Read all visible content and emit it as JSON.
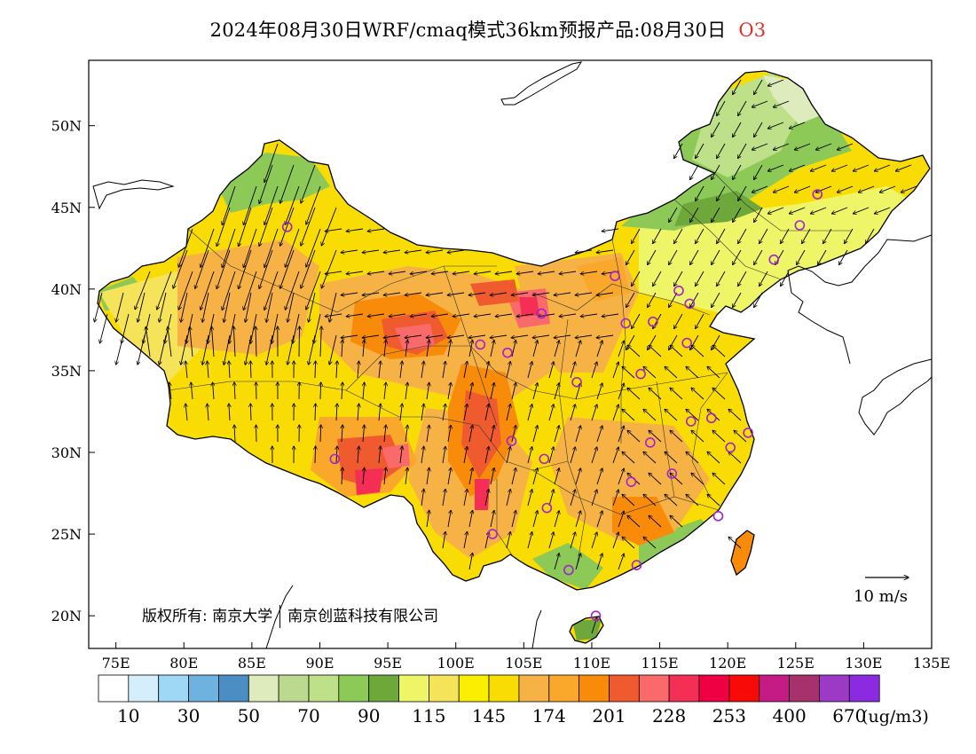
{
  "title": {
    "text": "2024年08月30日WRF/cmaq模式36km预报产品:08月30日",
    "species": "O3"
  },
  "copyright": {
    "prefix": "版权所有:",
    "org1": "南京大学",
    "org2": "南京创蓝科技有限公司"
  },
  "wind_scale": {
    "label": "10  m/s"
  },
  "axes": {
    "lat_ticks": [
      "50N",
      "45N",
      "40N",
      "35N",
      "30N",
      "25N",
      "20N"
    ],
    "lat_values": [
      50,
      45,
      40,
      35,
      30,
      25,
      20
    ],
    "lon_ticks": [
      "75E",
      "80E",
      "85E",
      "90E",
      "95E",
      "100E",
      "105E",
      "110E",
      "115E",
      "120E",
      "125E",
      "130E",
      "135E"
    ],
    "lon_values": [
      75,
      80,
      85,
      90,
      95,
      100,
      105,
      110,
      115,
      120,
      125,
      130,
      135
    ],
    "lon_range": [
      73,
      135
    ],
    "lat_range": [
      18,
      54
    ]
  },
  "colorbar": {
    "unit": "(ug/m3)",
    "colors": [
      "#ffffff",
      "#d4effb",
      "#9fd8f5",
      "#6eb2e0",
      "#4a8ec4",
      "#ddebbd",
      "#bbd98f",
      "#bde088",
      "#8dc956",
      "#6ea83a",
      "#eef566",
      "#f5e35a",
      "#fbef00",
      "#f8dc04",
      "#f7b246",
      "#f9a82b",
      "#f98b0a",
      "#ef5b2e",
      "#fb6a6a",
      "#f42e55",
      "#ef0042",
      "#f70a08",
      "#c41b84",
      "#a6316d",
      "#9c3ac6",
      "#8b2ae0"
    ],
    "labels": [
      {
        "text": "10",
        "boundary": 1
      },
      {
        "text": "30",
        "boundary": 3
      },
      {
        "text": "50",
        "boundary": 5
      },
      {
        "text": "70",
        "boundary": 7
      },
      {
        "text": "90",
        "boundary": 9
      },
      {
        "text": "115",
        "boundary": 11
      },
      {
        "text": "145",
        "boundary": 13
      },
      {
        "text": "174",
        "boundary": 15
      },
      {
        "text": "201",
        "boundary": 17
      },
      {
        "text": "228",
        "boundary": 19
      },
      {
        "text": "253",
        "boundary": 21
      },
      {
        "text": "400",
        "boundary": 23
      },
      {
        "text": "670",
        "boundary": 25
      }
    ]
  },
  "stations": [
    {
      "lon": 87.6,
      "lat": 43.8
    },
    {
      "lon": 91.1,
      "lat": 29.6
    },
    {
      "lon": 101.8,
      "lat": 36.6
    },
    {
      "lon": 103.8,
      "lat": 36.1
    },
    {
      "lon": 106.3,
      "lat": 38.5
    },
    {
      "lon": 111.7,
      "lat": 40.8
    },
    {
      "lon": 116.4,
      "lat": 39.9
    },
    {
      "lon": 117.2,
      "lat": 39.1
    },
    {
      "lon": 114.5,
      "lat": 38.0
    },
    {
      "lon": 112.5,
      "lat": 37.9
    },
    {
      "lon": 117.0,
      "lat": 36.7
    },
    {
      "lon": 113.6,
      "lat": 34.8
    },
    {
      "lon": 108.9,
      "lat": 34.3
    },
    {
      "lon": 104.1,
      "lat": 30.7
    },
    {
      "lon": 106.5,
      "lat": 29.6
    },
    {
      "lon": 114.3,
      "lat": 30.6
    },
    {
      "lon": 112.9,
      "lat": 28.2
    },
    {
      "lon": 115.9,
      "lat": 28.7
    },
    {
      "lon": 117.3,
      "lat": 31.9
    },
    {
      "lon": 118.8,
      "lat": 32.1
    },
    {
      "lon": 120.2,
      "lat": 30.3
    },
    {
      "lon": 121.5,
      "lat": 31.2
    },
    {
      "lon": 119.3,
      "lat": 26.1
    },
    {
      "lon": 113.3,
      "lat": 23.1
    },
    {
      "lon": 108.3,
      "lat": 22.8
    },
    {
      "lon": 106.7,
      "lat": 26.6
    },
    {
      "lon": 102.7,
      "lat": 25.0
    },
    {
      "lon": 110.3,
      "lat": 20.0
    },
    {
      "lon": 123.4,
      "lat": 41.8
    },
    {
      "lon": 125.3,
      "lat": 43.9
    },
    {
      "lon": 126.6,
      "lat": 45.8
    }
  ]
}
